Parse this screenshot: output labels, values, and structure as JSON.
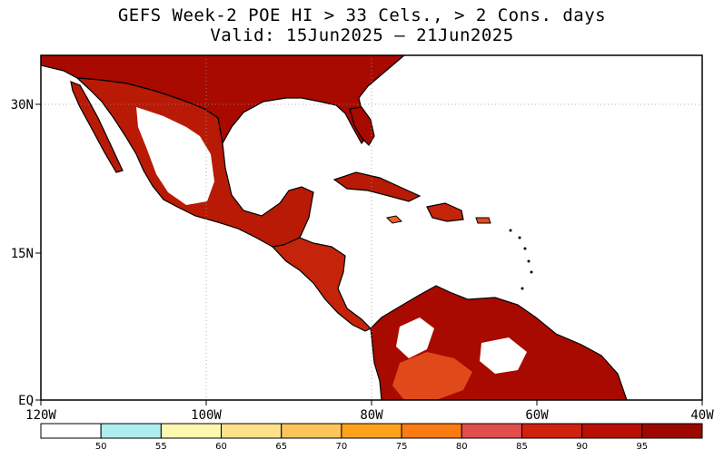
{
  "title_line1": "GEFS Week-2 POE HI > 33 Cels., > 2 Cons. days",
  "title_line2": "Valid: 15Jun2025 – 21Jun2025",
  "map": {
    "lon_range": [
      -120,
      -40
    ],
    "lat_range": [
      0,
      35
    ],
    "x_tick_labels": [
      "120W",
      "100W",
      "80W",
      "60W",
      "40W"
    ],
    "y_tick_labels": [
      "EQ",
      "15N",
      "30N"
    ],
    "colors": {
      "ocean": "#ffffff",
      "coast": "#000000",
      "high": "#a80a00",
      "med": "#d42a0c",
      "low": "#f06020"
    }
  },
  "colorbar": {
    "labels": [
      "50",
      "55",
      "60",
      "65",
      "70",
      "75",
      "80",
      "85",
      "90",
      "95"
    ],
    "colors": [
      "#ffffff",
      "#aeeef0",
      "#fef7b0",
      "#fde28a",
      "#fdc45a",
      "#fea21a",
      "#fb7a12",
      "#e24e4e",
      "#d0200e",
      "#b80e04",
      "#9c0800"
    ]
  }
}
